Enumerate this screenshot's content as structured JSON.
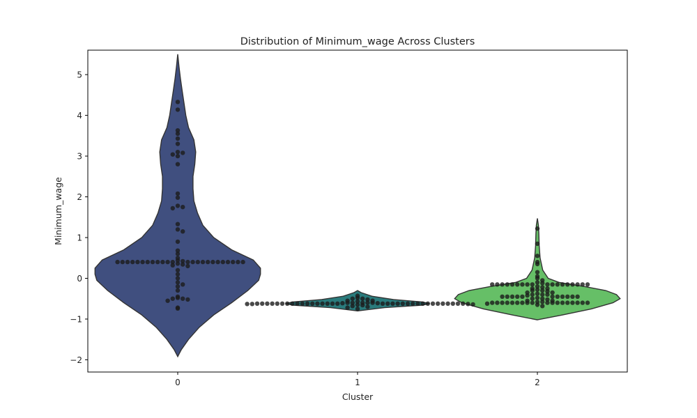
{
  "chart_data": {
    "type": "violin",
    "title": "Distribution of Minimum_wage Across Clusters",
    "xlabel": "Cluster",
    "ylabel": "Minimum_wage",
    "categories": [
      "0",
      "1",
      "2"
    ],
    "ylim": [
      -2.3,
      5.6
    ],
    "yticks": [
      -2,
      -1,
      0,
      1,
      2,
      3,
      4,
      5
    ],
    "ytick_labels": [
      "−2",
      "−1",
      "0",
      "1",
      "2",
      "3",
      "4",
      "5"
    ],
    "grid": false,
    "legend": "none",
    "violins": [
      {
        "category": "0",
        "color": "#404f7f",
        "profile": [
          [
            -1.92,
            0.0
          ],
          [
            -1.75,
            0.02
          ],
          [
            -1.5,
            0.06
          ],
          [
            -1.2,
            0.12
          ],
          [
            -0.9,
            0.2
          ],
          [
            -0.6,
            0.3
          ],
          [
            -0.3,
            0.39
          ],
          [
            -0.05,
            0.45
          ],
          [
            0.1,
            0.46
          ],
          [
            0.25,
            0.46
          ],
          [
            0.45,
            0.42
          ],
          [
            0.7,
            0.3
          ],
          [
            1.0,
            0.2
          ],
          [
            1.3,
            0.14
          ],
          [
            1.6,
            0.11
          ],
          [
            1.9,
            0.09
          ],
          [
            2.2,
            0.085
          ],
          [
            2.5,
            0.085
          ],
          [
            2.8,
            0.095
          ],
          [
            3.1,
            0.1
          ],
          [
            3.4,
            0.09
          ],
          [
            3.7,
            0.06
          ],
          [
            4.0,
            0.045
          ],
          [
            4.3,
            0.035
          ],
          [
            4.6,
            0.025
          ],
          [
            4.9,
            0.015
          ],
          [
            5.2,
            0.007
          ],
          [
            5.5,
            0.0
          ]
        ]
      },
      {
        "category": "1",
        "color": "#2a7b7c",
        "profile": [
          [
            -0.8,
            0.0
          ],
          [
            -0.72,
            0.15
          ],
          [
            -0.66,
            0.36
          ],
          [
            -0.62,
            0.4
          ],
          [
            -0.58,
            0.36
          ],
          [
            -0.52,
            0.2
          ],
          [
            -0.44,
            0.08
          ],
          [
            -0.35,
            0.02
          ],
          [
            -0.3,
            0.0
          ]
        ]
      },
      {
        "category": "2",
        "color": "#66bf67",
        "profile": [
          [
            -1.02,
            0.0
          ],
          [
            -0.9,
            0.14
          ],
          [
            -0.75,
            0.3
          ],
          [
            -0.6,
            0.42
          ],
          [
            -0.5,
            0.46
          ],
          [
            -0.4,
            0.44
          ],
          [
            -0.3,
            0.38
          ],
          [
            -0.2,
            0.26
          ],
          [
            -0.1,
            0.12
          ],
          [
            0.0,
            0.06
          ],
          [
            0.2,
            0.03
          ],
          [
            0.5,
            0.015
          ],
          [
            0.8,
            0.01
          ],
          [
            1.1,
            0.008
          ],
          [
            1.3,
            0.006
          ],
          [
            1.47,
            0.0
          ]
        ]
      }
    ],
    "points": [
      {
        "category": "0",
        "y": [
          4.33,
          4.14,
          3.63,
          3.55,
          3.43,
          3.3,
          3.1,
          3.08,
          3.04,
          3.0,
          2.8,
          2.08,
          1.98,
          1.78,
          1.75,
          1.72,
          1.33,
          1.2,
          1.15,
          0.9,
          0.68,
          0.6,
          0.5,
          0.44,
          0.42,
          0.4,
          0.4,
          0.4,
          0.4,
          0.4,
          0.4,
          0.4,
          0.4,
          0.4,
          0.4,
          0.4,
          0.4,
          0.4,
          0.4,
          0.4,
          0.4,
          0.4,
          0.4,
          0.4,
          0.4,
          0.4,
          0.4,
          0.4,
          0.4,
          0.36,
          0.34,
          0.32,
          0.3,
          0.2,
          0.1,
          0.0,
          -0.1,
          -0.15,
          -0.2,
          -0.3,
          -0.45,
          -0.48,
          -0.5,
          -0.5,
          -0.52,
          -0.55,
          -0.72,
          -0.74
        ]
      },
      {
        "category": "1",
        "y": [
          -0.43,
          -0.48,
          -0.5,
          -0.5,
          -0.52,
          -0.55,
          -0.55,
          -0.57,
          -0.6,
          -0.6,
          -0.6,
          -0.6,
          -0.6,
          -0.61,
          -0.61,
          -0.62,
          -0.62,
          -0.62,
          -0.62,
          -0.62,
          -0.62,
          -0.62,
          -0.62,
          -0.62,
          -0.62,
          -0.62,
          -0.62,
          -0.62,
          -0.62,
          -0.62,
          -0.62,
          -0.62,
          -0.62,
          -0.62,
          -0.62,
          -0.62,
          -0.62,
          -0.62,
          -0.62,
          -0.62,
          -0.62,
          -0.62,
          -0.62,
          -0.62,
          -0.62,
          -0.62,
          -0.62,
          -0.62,
          -0.62,
          -0.63,
          -0.63,
          -0.63,
          -0.64,
          -0.65,
          -0.66,
          -0.68,
          -0.7,
          -0.72,
          -0.75
        ]
      },
      {
        "category": "2",
        "y": [
          1.22,
          0.85,
          0.55,
          0.4,
          0.35,
          0.15,
          0.05,
          0.0,
          -0.05,
          -0.1,
          -0.12,
          -0.15,
          -0.15,
          -0.15,
          -0.15,
          -0.15,
          -0.15,
          -0.15,
          -0.15,
          -0.15,
          -0.15,
          -0.15,
          -0.15,
          -0.15,
          -0.15,
          -0.15,
          -0.15,
          -0.15,
          -0.15,
          -0.2,
          -0.22,
          -0.25,
          -0.25,
          -0.28,
          -0.3,
          -0.3,
          -0.32,
          -0.35,
          -0.35,
          -0.38,
          -0.4,
          -0.4,
          -0.4,
          -0.42,
          -0.45,
          -0.45,
          -0.45,
          -0.45,
          -0.45,
          -0.45,
          -0.45,
          -0.45,
          -0.45,
          -0.45,
          -0.45,
          -0.48,
          -0.5,
          -0.5,
          -0.52,
          -0.55,
          -0.55,
          -0.58,
          -0.58,
          -0.6,
          -0.6,
          -0.6,
          -0.6,
          -0.6,
          -0.6,
          -0.6,
          -0.6,
          -0.6,
          -0.6,
          -0.6,
          -0.6,
          -0.6,
          -0.6,
          -0.6,
          -0.6,
          -0.6,
          -0.6,
          -0.62,
          -0.65,
          -0.68
        ]
      }
    ],
    "point_color": "#1c1c1c",
    "outline_color": "#333333"
  }
}
